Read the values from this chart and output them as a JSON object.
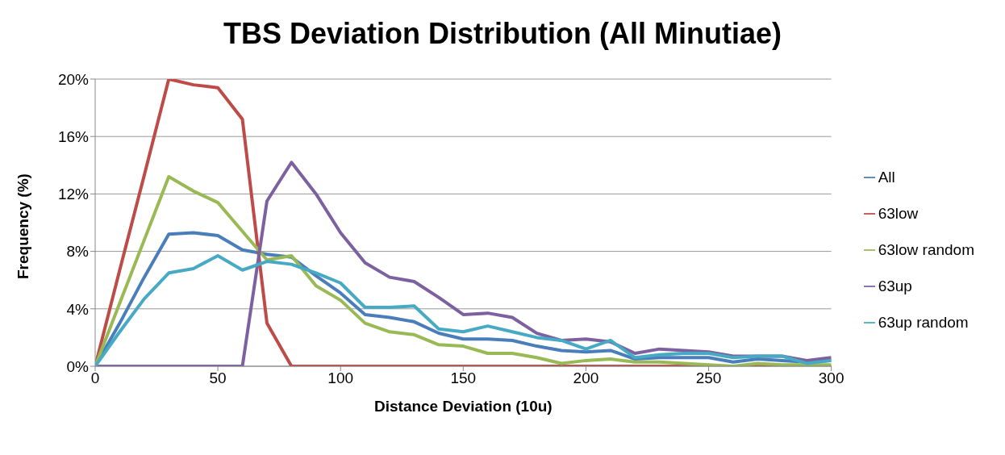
{
  "chart_data": {
    "type": "line",
    "title": "TBS Deviation Distribution (All Minutiae)",
    "xlabel": "Distance Deviation (10u)",
    "ylabel": "Frequency (%)",
    "x": [
      0,
      10,
      20,
      30,
      40,
      50,
      60,
      70,
      80,
      90,
      100,
      110,
      120,
      130,
      140,
      150,
      160,
      170,
      180,
      190,
      200,
      210,
      220,
      230,
      240,
      250,
      260,
      270,
      280,
      290,
      300
    ],
    "series": [
      {
        "name": "All",
        "color": "#4a7ebb",
        "values": [
          0,
          3,
          6.2,
          9.2,
          9.3,
          9.1,
          8.1,
          7.8,
          7.6,
          6.3,
          5.1,
          3.6,
          3.4,
          3.1,
          2.3,
          1.9,
          1.9,
          1.8,
          1.4,
          1.1,
          1.0,
          1.1,
          0.5,
          0.6,
          0.6,
          0.6,
          0.3,
          0.5,
          0.4,
          0.3,
          0.4
        ]
      },
      {
        "name": "63low",
        "color": "#be4b48",
        "values": [
          0,
          6.7,
          13.3,
          20,
          19.6,
          19.4,
          17.2,
          3.0,
          0,
          0,
          0,
          0,
          0,
          0,
          0,
          0,
          0,
          0,
          0,
          0,
          0,
          0,
          0,
          0,
          0,
          0,
          0,
          0,
          0,
          0,
          0
        ]
      },
      {
        "name": "63low random",
        "color": "#98b954",
        "values": [
          0,
          4.4,
          8.8,
          13.2,
          12.2,
          11.4,
          9.4,
          7.4,
          7.7,
          5.6,
          4.6,
          3.0,
          2.4,
          2.2,
          1.5,
          1.4,
          0.9,
          0.9,
          0.6,
          0.2,
          0.4,
          0.5,
          0.3,
          0.3,
          0.2,
          0.1,
          0,
          0.2,
          0.1,
          0.1,
          0.1
        ]
      },
      {
        "name": "63up",
        "color": "#7d60a0",
        "values": [
          0,
          0,
          0,
          0,
          0,
          0,
          0,
          11.5,
          14.2,
          12.0,
          9.3,
          7.2,
          6.2,
          5.9,
          4.8,
          3.6,
          3.7,
          3.4,
          2.3,
          1.8,
          1.9,
          1.7,
          0.9,
          1.2,
          1.1,
          1.0,
          0.7,
          0.7,
          0.7,
          0.4,
          0.6
        ]
      },
      {
        "name": "63up random",
        "color": "#46aac5",
        "values": [
          0,
          2.4,
          4.7,
          6.5,
          6.8,
          7.7,
          6.7,
          7.3,
          7.1,
          6.5,
          5.8,
          4.1,
          4.1,
          4.2,
          2.6,
          2.4,
          2.8,
          2.4,
          2.0,
          1.8,
          1.2,
          1.8,
          0.6,
          0.8,
          0.9,
          0.9,
          0.6,
          0.7,
          0.7,
          0.2,
          0.4
        ]
      }
    ],
    "xlim": [
      0,
      300
    ],
    "xticks": [
      0,
      50,
      100,
      150,
      200,
      250,
      300
    ],
    "ylim": [
      0,
      20
    ],
    "yticks": [
      {
        "value": 0,
        "label": "0%"
      },
      {
        "value": 4,
        "label": "4%"
      },
      {
        "value": 8,
        "label": "8%"
      },
      {
        "value": 12,
        "label": "12%"
      },
      {
        "value": 16,
        "label": "16%"
      },
      {
        "value": 20,
        "label": "20%"
      }
    ],
    "grid": "y",
    "legend": "right",
    "marker": "none",
    "line_style": "solid"
  }
}
